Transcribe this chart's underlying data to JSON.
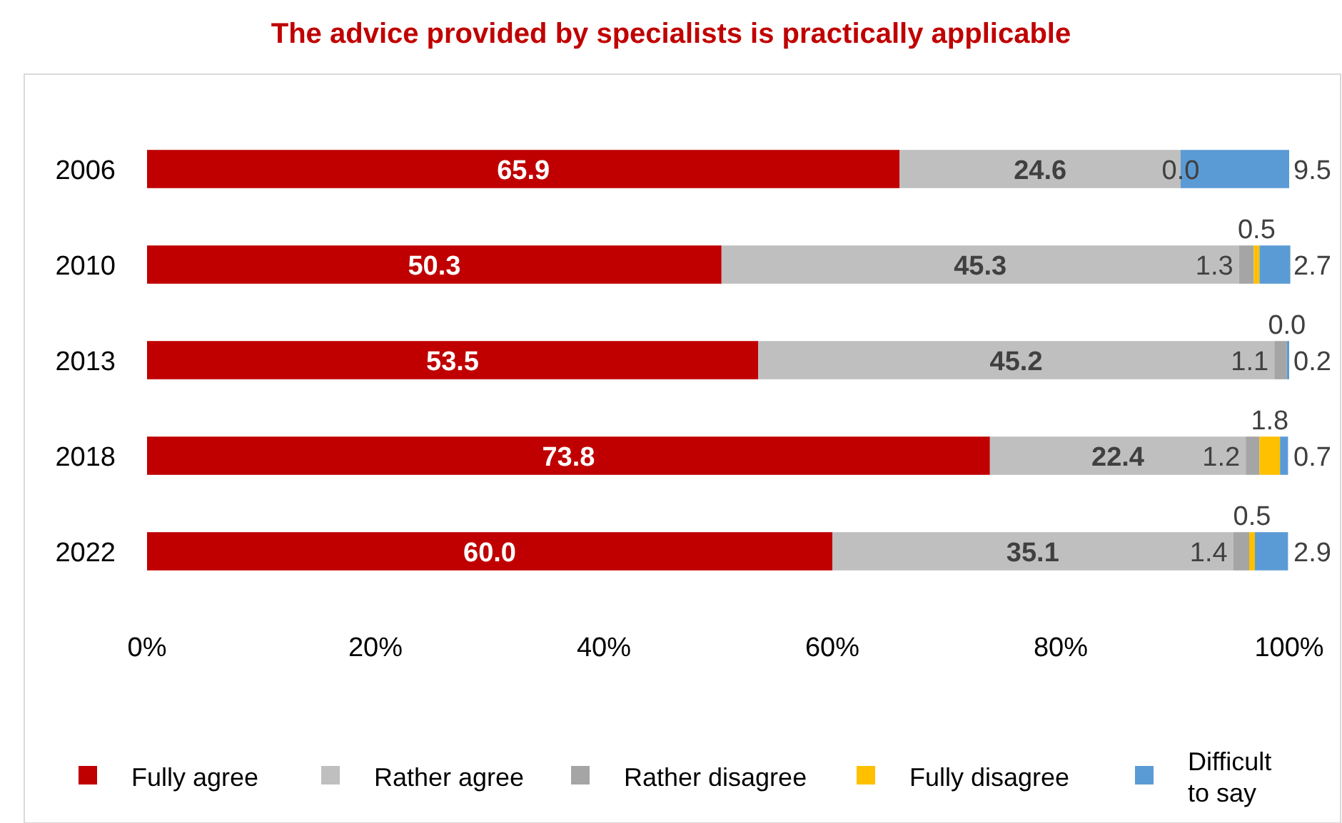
{
  "chart_data": {
    "type": "bar",
    "orientation": "horizontal",
    "stacked": true,
    "title": "The advice provided by specialists is practically applicable",
    "categories": [
      "2006",
      "2010",
      "2013",
      "2018",
      "2022"
    ],
    "series": [
      {
        "name": "Fully agree",
        "color": "#c00000",
        "values": [
          65.9,
          50.3,
          53.5,
          73.8,
          60.0
        ],
        "value_labels": [
          "65.9",
          "50.3",
          "53.5",
          "73.8",
          "60.0"
        ]
      },
      {
        "name": "Rather agree",
        "color": "#bfbfbf",
        "values": [
          24.6,
          45.3,
          45.2,
          22.4,
          35.1
        ],
        "value_labels": [
          "24.6",
          "45.3",
          "45.2",
          "22.4",
          "35.1"
        ]
      },
      {
        "name": "Rather disagree",
        "color": "#a5a5a5",
        "values": [
          0.0,
          1.3,
          1.1,
          1.2,
          1.4
        ],
        "value_labels": [
          null,
          "1.3",
          "1.1",
          "1.2",
          "1.4"
        ]
      },
      {
        "name": "Fully disagree",
        "color": "#ffc000",
        "values": [
          null,
          0.5,
          0.0,
          1.8,
          0.5
        ],
        "value_labels": [
          null,
          "0.5",
          null,
          "1.8",
          "0.5"
        ]
      },
      {
        "name": "Difficult to say",
        "color": "#5b9bd5",
        "values": [
          9.5,
          2.7,
          0.2,
          0.7,
          2.9
        ],
        "value_labels": [
          "9.5",
          "2.7",
          "0.2",
          "0.7",
          "2.9"
        ]
      }
    ],
    "xlim": [
      0,
      100
    ],
    "xticks": [
      {
        "value": 0,
        "label": "0%"
      },
      {
        "value": 20,
        "label": "20%"
      },
      {
        "value": 40,
        "label": "40%"
      },
      {
        "value": 60,
        "label": "60%"
      },
      {
        "value": 80,
        "label": "80%"
      },
      {
        "value": 100,
        "label": "100%"
      }
    ],
    "annotations": [
      {
        "text": "0.0",
        "x": 90.5,
        "y": "2006"
      },
      {
        "text": "0.0",
        "x": 99.8,
        "y": "2013"
      }
    ],
    "grid": false,
    "legend": "bottom"
  }
}
